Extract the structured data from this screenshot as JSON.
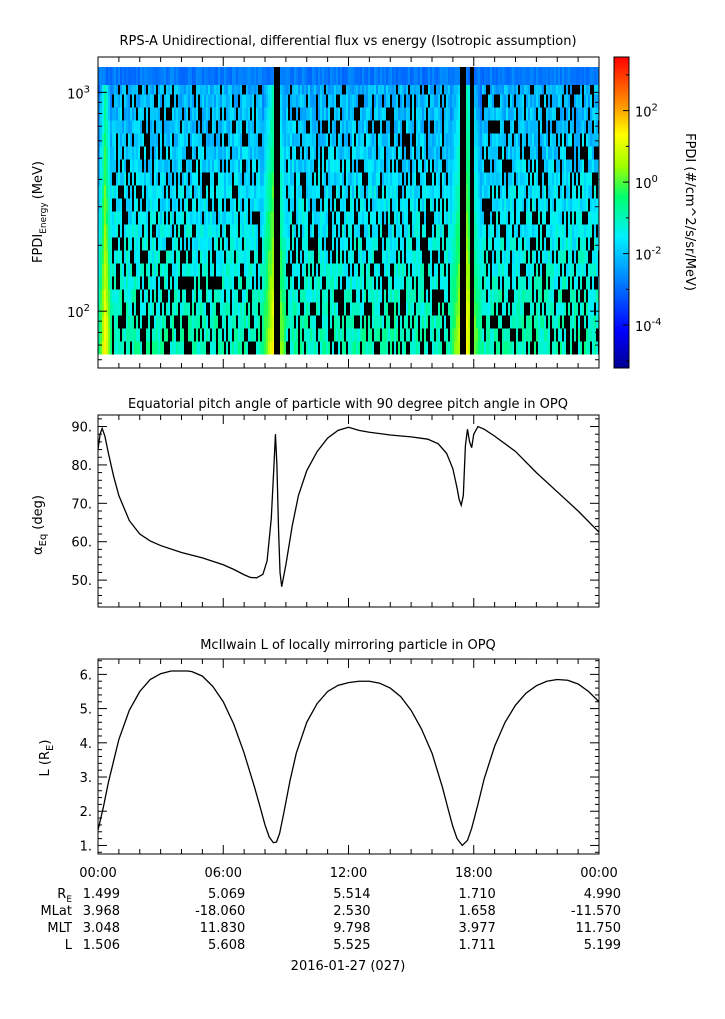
{
  "chart_data": [
    {
      "type": "heatmap",
      "title": "RPS-A Unidirectional, differential flux vs energy (Isotropic assumption)",
      "ylabel_main": "FPDI",
      "ylabel_sub": "Energy",
      "ylabel_unit": "(MeV)",
      "yscale": "log",
      "ylim": [
        55,
        1450
      ],
      "yticks": [
        {
          "value": 100,
          "base": "10",
          "exp": "2"
        },
        {
          "value": 1000,
          "base": "10",
          "exp": "3"
        }
      ],
      "colorbar": {
        "label": "FPDI (#/cm^2/s/sr/MeV)",
        "scale": "log",
        "range": [
          -5.2,
          3.5
        ],
        "ticks": [
          {
            "exp": "2",
            "base": "10",
            "value": 2
          },
          {
            "exp": "0",
            "base": "10",
            "value": 0
          },
          {
            "exp": "-2",
            "base": "10",
            "value": -2
          },
          {
            "exp": "-4",
            "base": "10",
            "value": -4
          }
        ]
      },
      "features": {
        "low_flux_minima_hours": [
          8.55,
          17.45,
          17.85
        ],
        "high_flux_bands": [
          [
            0.0,
            0.6
          ],
          [
            7.8,
            9.0
          ],
          [
            16.8,
            18.3
          ]
        ]
      }
    },
    {
      "type": "line",
      "title": "Equatorial pitch angle of particle with 90 degree pitch angle in OPQ",
      "ylabel_main": "α",
      "ylabel_sub": "Eq",
      "ylabel_unit": "(deg)",
      "ylim": [
        43,
        93
      ],
      "yticks": [
        50,
        60,
        70,
        80,
        90
      ],
      "yticklabels": [
        "50.",
        "60.",
        "70.",
        "80.",
        "90."
      ],
      "x": [
        0.0,
        0.1,
        0.2,
        0.33,
        0.5,
        0.75,
        1.0,
        1.5,
        2.0,
        2.5,
        3.0,
        4.0,
        5.0,
        6.0,
        6.5,
        7.0,
        7.3,
        7.6,
        7.9,
        8.1,
        8.3,
        8.43,
        8.5,
        8.57,
        8.65,
        8.72,
        8.8,
        9.0,
        9.3,
        9.6,
        10.0,
        10.5,
        11.0,
        11.5,
        12.0,
        12.5,
        13.0,
        14.0,
        15.0,
        15.8,
        16.3,
        16.7,
        17.0,
        17.2,
        17.3,
        17.4,
        17.5,
        17.6,
        17.7,
        17.8,
        17.9,
        18.0,
        18.2,
        18.5,
        19.0,
        20.0,
        21.0,
        22.0,
        23.0,
        24.0
      ],
      "y": [
        84.0,
        88.0,
        89.5,
        87.5,
        83.0,
        77.0,
        72.0,
        65.5,
        62.0,
        60.2,
        59.0,
        57.2,
        55.8,
        54.0,
        52.8,
        51.4,
        50.7,
        50.6,
        51.5,
        55.0,
        66.0,
        80.0,
        88.0,
        80.0,
        63.0,
        52.0,
        48.3,
        54.0,
        64.0,
        72.0,
        78.5,
        83.5,
        87.0,
        89.0,
        89.8,
        89.0,
        88.5,
        87.8,
        87.3,
        86.7,
        85.5,
        83.0,
        79.0,
        74.0,
        71.0,
        69.5,
        72.0,
        85.0,
        89.3,
        86.0,
        84.5,
        88.0,
        90.0,
        89.3,
        87.5,
        83.5,
        78.0,
        73.0,
        68.0,
        62.5
      ]
    },
    {
      "type": "line",
      "title": "McIlwain L of locally mirroring particle in OPQ",
      "ylabel_main": "L (R",
      "ylabel_sub": "E",
      "ylabel_unit": ")",
      "ylim": [
        0.75,
        6.45
      ],
      "yticks": [
        1,
        2,
        3,
        4,
        5,
        6
      ],
      "yticklabels": [
        "1.",
        "2.",
        "3.",
        "4.",
        "5.",
        "6."
      ],
      "x": [
        0.0,
        0.25,
        0.5,
        1.0,
        1.5,
        2.0,
        2.5,
        3.0,
        3.5,
        4.0,
        4.3,
        4.5,
        5.0,
        5.5,
        6.0,
        6.5,
        7.0,
        7.5,
        7.8,
        8.0,
        8.2,
        8.4,
        8.55,
        8.7,
        8.9,
        9.2,
        9.5,
        10.0,
        10.5,
        11.0,
        11.5,
        12.0,
        12.5,
        13.0,
        13.5,
        14.0,
        14.5,
        15.0,
        15.5,
        16.0,
        16.5,
        16.8,
        17.0,
        17.2,
        17.45,
        17.7,
        17.9,
        18.2,
        18.5,
        19.0,
        19.5,
        20.0,
        20.5,
        21.0,
        21.5,
        22.0,
        22.5,
        23.0,
        23.5,
        24.0
      ],
      "y": [
        1.45,
        2.1,
        2.85,
        4.1,
        4.95,
        5.5,
        5.85,
        6.02,
        6.1,
        6.1,
        6.1,
        6.08,
        5.95,
        5.65,
        5.2,
        4.55,
        3.7,
        2.7,
        2.05,
        1.6,
        1.25,
        1.08,
        1.1,
        1.35,
        1.95,
        2.9,
        3.7,
        4.6,
        5.15,
        5.5,
        5.68,
        5.76,
        5.8,
        5.8,
        5.74,
        5.6,
        5.35,
        4.95,
        4.4,
        3.7,
        2.7,
        2.0,
        1.55,
        1.2,
        1.0,
        1.15,
        1.5,
        2.2,
        2.95,
        3.9,
        4.6,
        5.1,
        5.45,
        5.67,
        5.8,
        5.85,
        5.83,
        5.72,
        5.5,
        5.2
      ]
    }
  ],
  "x_axis": {
    "range_hours": [
      0,
      24
    ],
    "ticks": [
      {
        "hours": 0,
        "label": "00:00"
      },
      {
        "hours": 6,
        "label": "06:00"
      },
      {
        "hours": 12,
        "label": "12:00"
      },
      {
        "hours": 18,
        "label": "18:00"
      },
      {
        "hours": 24,
        "label": "00:00"
      }
    ],
    "date_label": "2016-01-27 (027)"
  },
  "ephemeris": {
    "rows": [
      {
        "label_main": "R",
        "label_sub": "E",
        "values": [
          "1.499",
          "5.069",
          "5.514",
          "1.710",
          "4.990"
        ]
      },
      {
        "label_main": "MLat",
        "label_sub": "",
        "values": [
          "3.968",
          "-18.060",
          "2.530",
          "1.658",
          "-11.570"
        ]
      },
      {
        "label_main": "MLT",
        "label_sub": "",
        "values": [
          "3.048",
          "11.830",
          "9.798",
          "3.977",
          "11.750"
        ]
      },
      {
        "label_main": "L",
        "label_sub": "",
        "values": [
          "1.506",
          "5.608",
          "5.525",
          "1.711",
          "5.199"
        ]
      }
    ]
  }
}
